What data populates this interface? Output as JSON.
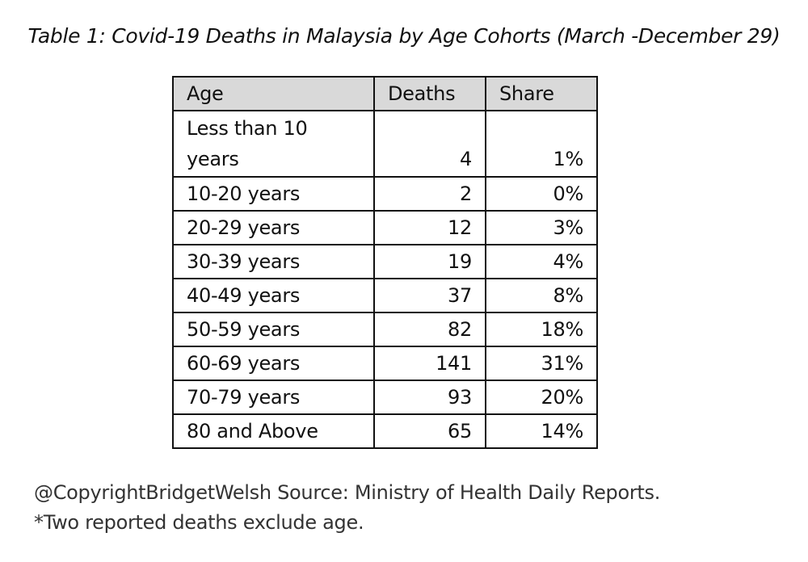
{
  "title": "Table 1: Covid-19 Deaths in Malaysia by Age Cohorts (March -December 29)",
  "table": {
    "headers": [
      "Age",
      "Deaths",
      "Share"
    ],
    "rows": [
      {
        "age": "Less than 10 years",
        "deaths": "4",
        "share": "1%"
      },
      {
        "age": "10-20 years",
        "deaths": "2",
        "share": "0%"
      },
      {
        "age": "20-29 years",
        "deaths": "12",
        "share": "3%"
      },
      {
        "age": "30-39 years",
        "deaths": "19",
        "share": "4%"
      },
      {
        "age": "40-49 years",
        "deaths": "37",
        "share": "8%"
      },
      {
        "age": "50-59 years",
        "deaths": "82",
        "share": "18%"
      },
      {
        "age": "60-69 years",
        "deaths": "141",
        "share": "31%"
      },
      {
        "age": "70-79 years",
        "deaths": "93",
        "share": "20%"
      },
      {
        "age": "80 and Above",
        "deaths": "65",
        "share": "14%"
      }
    ]
  },
  "footer": {
    "source": "@CopyrightBridgetWelsh Source: Ministry of Health Daily Reports.",
    "note": "*Two reported deaths exclude age."
  }
}
